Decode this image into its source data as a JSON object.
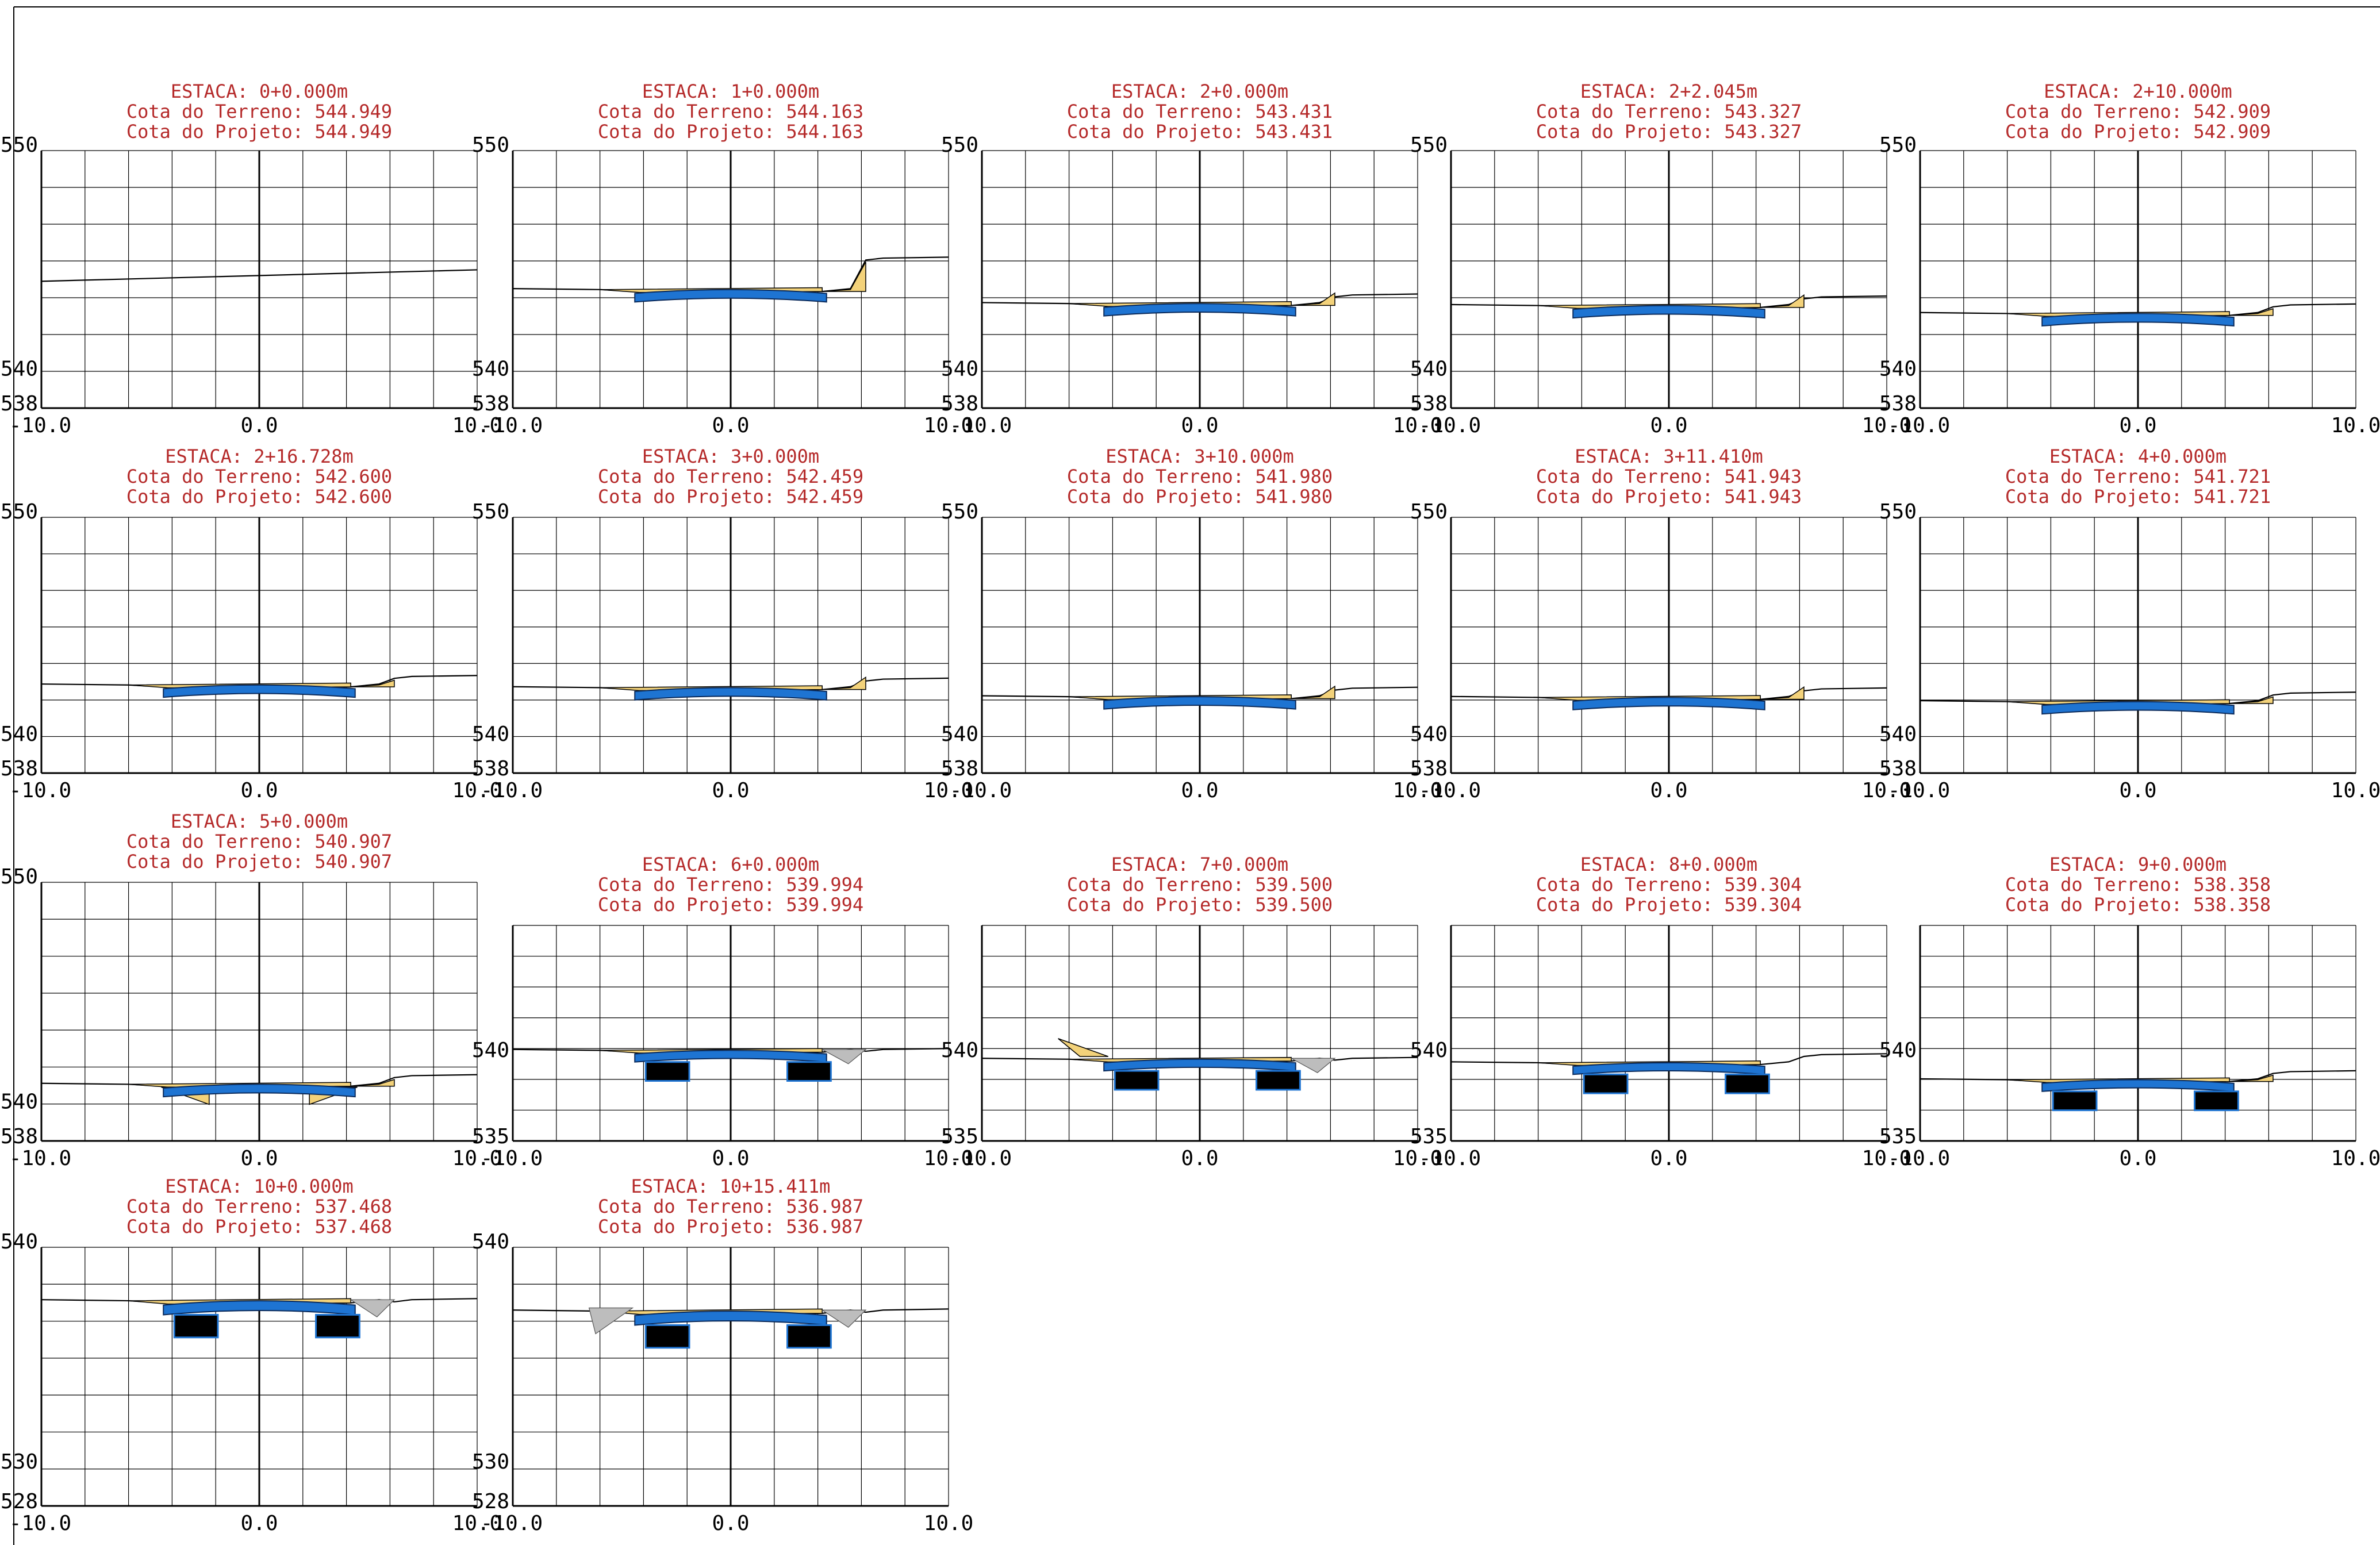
{
  "drawing": {
    "colors": {
      "header_text": "#b52a2a",
      "pavement_blue": "#1e74d2",
      "pavement_outline": "#0b2a5a",
      "fill_yellow": "#f3d27a",
      "cut_grey": "#bdbdbd",
      "box_black": "#000000",
      "grid": "#000000"
    },
    "x_labels": [
      "-10.0",
      "0.0",
      "10.0"
    ],
    "sections": [
      {
        "estaca": "ESTACA: 0+0.000m",
        "terreno": "Cota do Terreno:  544.949",
        "projeto": "Cota do Projeto: 544.949",
        "y_top_label": "550",
        "y_mid_label": "540",
        "y_bot_label": "538",
        "ymin": 538,
        "ymax": 551.5,
        "ground_type": "line",
        "cota": 544.949,
        "has_structure": false,
        "has_boxes": false
      },
      {
        "estaca": "ESTACA: 1+0.000m",
        "terreno": "Cota do Terreno:  544.163",
        "projeto": "Cota do Projeto: 544.163",
        "y_top_label": "550",
        "y_mid_label": "540",
        "y_bot_label": "538",
        "ymin": 538,
        "ymax": 551.5,
        "ground_type": "flat",
        "cota": 544.163,
        "has_structure": true,
        "has_boxes": false,
        "right_fill": "big"
      },
      {
        "estaca": "ESTACA: 2+0.000m",
        "terreno": "Cota do Terreno:  543.431",
        "projeto": "Cota do Projeto: 543.431",
        "y_top_label": "550",
        "y_mid_label": "540",
        "y_bot_label": "538",
        "ymin": 538,
        "ymax": 551.5,
        "ground_type": "flat",
        "cota": 543.431,
        "has_structure": true,
        "has_boxes": false,
        "right_fill": "small"
      },
      {
        "estaca": "ESTACA: 2+2.045m",
        "terreno": "Cota do Terreno:  543.327",
        "projeto": "Cota do Projeto: 543.327",
        "y_top_label": "550",
        "y_mid_label": "540",
        "y_bot_label": "538",
        "ymin": 538,
        "ymax": 551.5,
        "ground_type": "flat",
        "cota": 543.327,
        "has_structure": true,
        "has_boxes": false,
        "right_fill": "small"
      },
      {
        "estaca": "ESTACA: 2+10.000m",
        "terreno": "Cota do Terreno:  542.909",
        "projeto": "Cota do Projeto: 542.909",
        "y_top_label": "550",
        "y_mid_label": "540",
        "y_bot_label": "538",
        "ymin": 538,
        "ymax": 551.5,
        "ground_type": "flat",
        "cota": 542.909,
        "has_structure": true,
        "has_boxes": false,
        "right_fill": "tiny"
      },
      {
        "estaca": "ESTACA: 2+16.728m",
        "terreno": "Cota do Terreno:  542.600",
        "projeto": "Cota do Projeto: 542.600",
        "y_top_label": "550",
        "y_mid_label": "540",
        "y_bot_label": "538",
        "ymin": 538,
        "ymax": 551.5,
        "ground_type": "flat",
        "cota": 542.6,
        "has_structure": true,
        "has_boxes": false,
        "right_fill": "tiny"
      },
      {
        "estaca": "ESTACA: 3+0.000m",
        "terreno": "Cota do Terreno:  542.459",
        "projeto": "Cota do Projeto: 542.459",
        "y_top_label": "550",
        "y_mid_label": "540",
        "y_bot_label": "538",
        "ymin": 538,
        "ymax": 551.5,
        "ground_type": "flat",
        "cota": 542.459,
        "has_structure": true,
        "has_boxes": false,
        "right_fill": "small"
      },
      {
        "estaca": "ESTACA: 3+10.000m",
        "terreno": "Cota do Terreno:  541.980",
        "projeto": "Cota do Projeto: 541.980",
        "y_top_label": "550",
        "y_mid_label": "540",
        "y_bot_label": "538",
        "ymin": 538,
        "ymax": 551.5,
        "ground_type": "flat",
        "cota": 541.98,
        "has_structure": true,
        "has_boxes": false,
        "right_fill": "small"
      },
      {
        "estaca": "ESTACA: 3+11.410m",
        "terreno": "Cota do Terreno:  541.943",
        "projeto": "Cota do Projeto: 541.943",
        "y_top_label": "550",
        "y_mid_label": "540",
        "y_bot_label": "538",
        "ymin": 538,
        "ymax": 551.5,
        "ground_type": "flat",
        "cota": 541.943,
        "has_structure": true,
        "has_boxes": false,
        "right_fill": "small"
      },
      {
        "estaca": "ESTACA: 4+0.000m",
        "terreno": "Cota do Terreno:  541.721",
        "projeto": "Cota do Projeto: 541.721",
        "y_top_label": "550",
        "y_mid_label": "540",
        "y_bot_label": "538",
        "ymin": 538,
        "ymax": 551.5,
        "ground_type": "flat",
        "cota": 541.721,
        "has_structure": true,
        "has_boxes": false,
        "right_fill": "tiny"
      },
      {
        "estaca": "ESTACA: 5+0.000m",
        "terreno": "Cota do Terreno:  540.907",
        "projeto": "Cota do Projeto: 540.907",
        "y_top_label": "550",
        "y_mid_label": "540",
        "y_bot_label": "538",
        "ymin": 538,
        "ymax": 551.5,
        "ground_type": "flat",
        "cota": 540.907,
        "has_structure": true,
        "has_boxes": false,
        "right_fill": "tiny",
        "under_fill": true
      },
      {
        "estaca": "ESTACA: 6+0.000m",
        "terreno": "Cota do Terreno:  539.994",
        "projeto": "Cota do Projeto: 539.994",
        "y_top_label": "",
        "y_mid_label": "540",
        "y_bot_label": "535",
        "ymin": 535,
        "ymax": 547.0,
        "ground_type": "flat",
        "cota": 539.994,
        "has_structure": true,
        "has_boxes": true,
        "right_fill": "grey"
      },
      {
        "estaca": "ESTACA: 7+0.000m",
        "terreno": "Cota do Terreno:  539.500",
        "projeto": "Cota do Projeto: 539.500",
        "y_top_label": "",
        "y_mid_label": "540",
        "y_bot_label": "535",
        "ymin": 535,
        "ymax": 547.0,
        "ground_type": "flat",
        "cota": 539.5,
        "has_structure": true,
        "has_boxes": true,
        "right_fill": "grey",
        "left_fill": true
      },
      {
        "estaca": "ESTACA: 8+0.000m",
        "terreno": "Cota do Terreno:  539.304",
        "projeto": "Cota do Projeto: 539.304",
        "y_top_label": "",
        "y_mid_label": "540",
        "y_bot_label": "535",
        "ymin": 535,
        "ymax": 547.0,
        "ground_type": "flat",
        "cota": 539.304,
        "has_structure": true,
        "has_boxes": true,
        "right_fill": "none"
      },
      {
        "estaca": "ESTACA: 9+0.000m",
        "terreno": "Cota do Terreno:  538.358",
        "projeto": "Cota do Projeto: 538.358",
        "y_top_label": "",
        "y_mid_label": "540",
        "y_bot_label": "535",
        "ymin": 535,
        "ymax": 547.0,
        "ground_type": "flat",
        "cota": 538.358,
        "has_structure": true,
        "has_boxes": true,
        "right_fill": "tiny"
      },
      {
        "estaca": "ESTACA: 10+0.000m",
        "terreno": "Cota do Terreno:  537.468",
        "projeto": "Cota do Projeto: 537.468",
        "y_top_label": "540",
        "y_mid_label": "530",
        "y_bot_label": "528",
        "ymin": 528,
        "ymax": 540.0,
        "ground_type": "flat",
        "cota": 537.468,
        "has_structure": true,
        "has_boxes": true,
        "right_fill": "grey"
      },
      {
        "estaca": "ESTACA: 10+15.411m",
        "terreno": "Cota do Terreno:  536.987",
        "projeto": "Cota do Projeto: 536.987",
        "y_top_label": "540",
        "y_mid_label": "530",
        "y_bot_label": "528",
        "ymin": 528,
        "ymax": 540.0,
        "ground_type": "flat",
        "cota": 536.987,
        "has_structure": true,
        "has_boxes": true,
        "right_fill": "grey",
        "left_grey": true
      }
    ]
  }
}
